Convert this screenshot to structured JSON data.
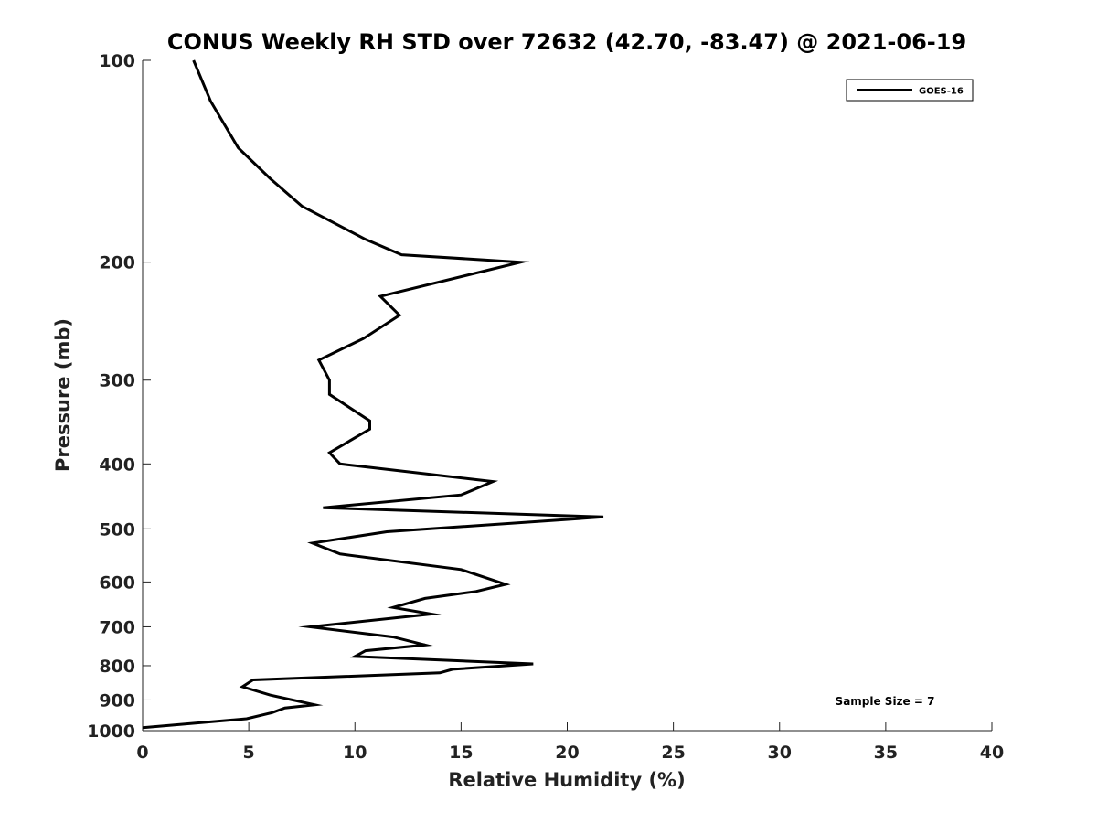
{
  "chart_data": {
    "type": "line",
    "title": "CONUS Weekly RH STD over 72632 (42.70, -83.47) @ 2021-06-19",
    "xlabel": "Relative Humidity (%)",
    "ylabel": "Pressure (mb)",
    "xlim": [
      0,
      40
    ],
    "ylim": [
      100,
      1000
    ],
    "yscale": "log",
    "y_reversed": true,
    "xticks": [
      0,
      5,
      10,
      15,
      20,
      25,
      30,
      35,
      40
    ],
    "yticks": [
      100,
      200,
      300,
      400,
      500,
      600,
      700,
      800,
      900,
      1000
    ],
    "grid": false,
    "legend": {
      "placement": "top-right",
      "entries": [
        "GOES-16"
      ]
    },
    "annotation": "Sample Size = 7",
    "series": [
      {
        "name": "GOES-16",
        "color": "#000000",
        "x": [
          2.4,
          3.2,
          4.5,
          6.0,
          7.5,
          10.5,
          12.2,
          17.8,
          11.2,
          12.1,
          10.4,
          8.3,
          8.8,
          8.8,
          10.7,
          10.7,
          8.8,
          9.3,
          16.5,
          15.0,
          8.5,
          21.7,
          11.5,
          8.0,
          9.3,
          15.0,
          17.1,
          15.7,
          13.3,
          11.8,
          13.6,
          7.9,
          11.8,
          13.3,
          10.5,
          10.0,
          18.4,
          14.6,
          14.0,
          5.2,
          4.7,
          6.0,
          8.1,
          6.7,
          6.1,
          4.9,
          0.0
        ],
        "y": [
          100,
          115,
          135,
          150,
          165,
          185,
          195,
          200,
          225,
          240,
          260,
          280,
          300,
          315,
          345,
          355,
          385,
          400,
          425,
          445,
          465,
          480,
          505,
          525,
          545,
          575,
          605,
          620,
          635,
          655,
          670,
          700,
          725,
          745,
          760,
          775,
          795,
          810,
          820,
          840,
          860,
          885,
          915,
          925,
          940,
          960,
          990
        ]
      }
    ]
  }
}
